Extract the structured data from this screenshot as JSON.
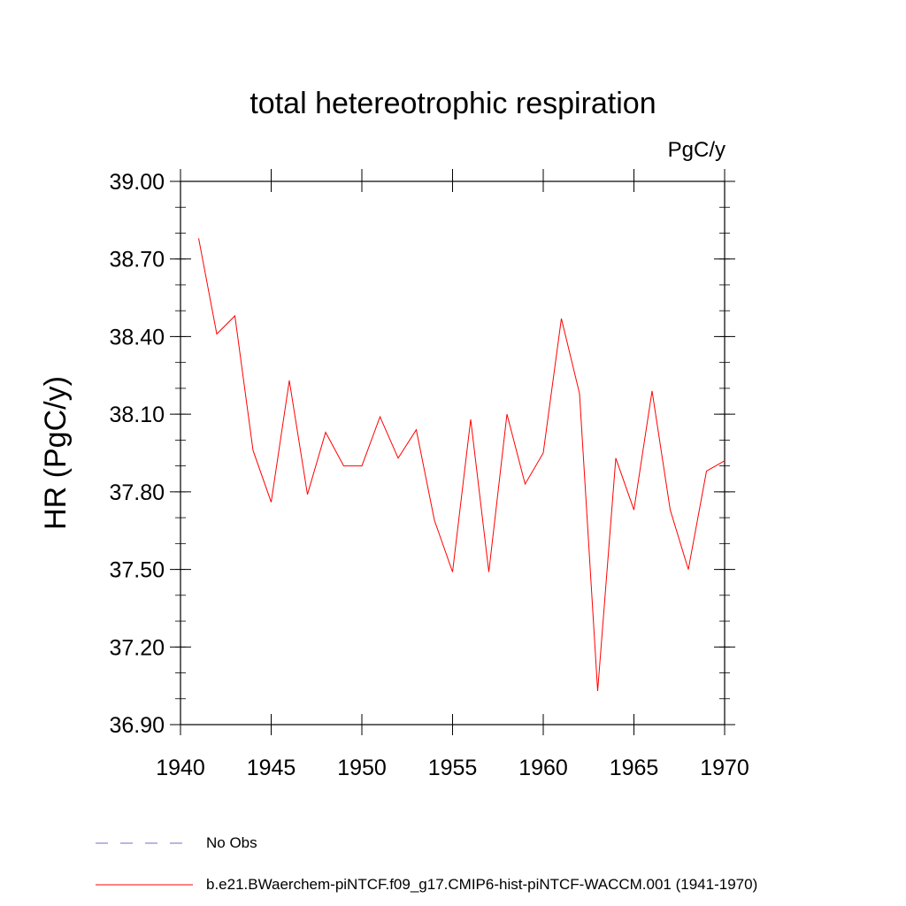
{
  "chart_data": {
    "type": "line",
    "title": "total hetereotrophic respiration",
    "units_label": "PgC/y",
    "ylabel": "HR  (PgC/y)",
    "xlabel": "",
    "xlim": [
      1940,
      1970
    ],
    "ylim": [
      36.9,
      39.0
    ],
    "xticks": [
      1940,
      1945,
      1950,
      1955,
      1960,
      1965,
      1970
    ],
    "yticks": [
      36.9,
      37.2,
      37.5,
      37.8,
      38.1,
      38.4,
      38.7,
      39.0
    ],
    "xtick_labels": [
      "1940",
      "1945",
      "1950",
      "1955",
      "1960",
      "1965",
      "1970"
    ],
    "ytick_labels": [
      "36.90",
      "37.20",
      "37.50",
      "37.80",
      "38.10",
      "38.40",
      "38.70",
      "39.00"
    ],
    "grid": false,
    "legend_position": "bottom-left",
    "series": [
      {
        "name": "b.e21.BWaerchem-piNTCF.f09_g17.CMIP6-hist-piNTCF-WACCM.001 (1941-1970)",
        "color": "#ff0000",
        "style": "solid",
        "x": [
          1941,
          1942,
          1943,
          1944,
          1945,
          1946,
          1947,
          1948,
          1949,
          1950,
          1951,
          1952,
          1953,
          1954,
          1955,
          1956,
          1957,
          1958,
          1959,
          1960,
          1961,
          1962,
          1963,
          1964,
          1965,
          1966,
          1967,
          1968,
          1969,
          1970
        ],
        "y": [
          38.78,
          38.41,
          38.48,
          37.96,
          37.76,
          38.23,
          37.79,
          38.03,
          37.9,
          37.9,
          38.09,
          37.93,
          38.04,
          37.69,
          37.49,
          38.08,
          37.49,
          38.1,
          37.83,
          37.95,
          38.47,
          38.18,
          37.03,
          37.93,
          37.73,
          38.19,
          37.73,
          37.5,
          37.88,
          37.92
        ]
      }
    ],
    "legend": [
      {
        "label": "No Obs",
        "color": "#7b68c8",
        "style": "dashed"
      },
      {
        "label": "b.e21.BWaerchem-piNTCF.f09_g17.CMIP6-hist-piNTCF-WACCM.001 (1941-1970)",
        "color": "#ff0000",
        "style": "solid"
      }
    ]
  }
}
